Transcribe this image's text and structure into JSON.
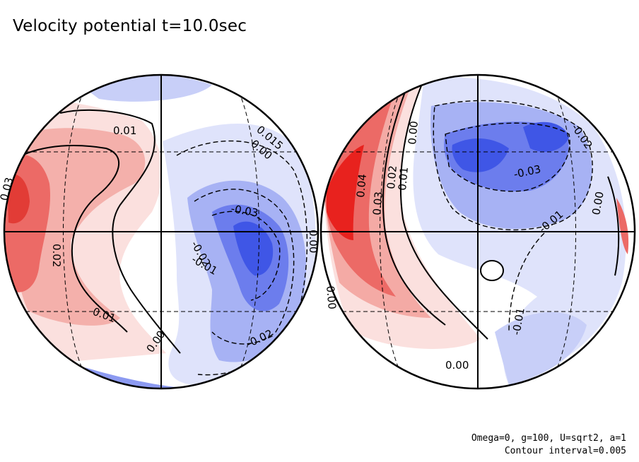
{
  "title": "Velocity potential t=10.0sec",
  "footer": {
    "params": "Omega=0, g=100, U=sqrt2, a=1",
    "contour_interval": "Contour interval=0.005"
  },
  "colors": {
    "positive_strong": "#e8221e",
    "positive_mid": "#f08a86",
    "positive_weak": "#fbe0de",
    "negative_strong": "#3f56e6",
    "negative_mid": "#8c9af1",
    "negative_weak": "#dfe3fb",
    "background": "#ffffff"
  },
  "left_globe": {
    "contour_labels": [
      "0.01",
      "0.015",
      "0.00",
      "0.03",
      "-0.03",
      "0.02",
      "-0.02",
      "-0.01",
      "0.00",
      "-0.01",
      "0.01",
      "0.00",
      "0.01",
      "-0.02"
    ]
  },
  "right_globe": {
    "contour_labels": [
      "0.00",
      "0.04",
      "0.03",
      "0.02",
      "0.01",
      "-0.03",
      "-0.02",
      "0.00",
      "-0.01",
      "0.00",
      "-0.01",
      "0.00",
      "-0.01",
      "0.00"
    ]
  }
}
